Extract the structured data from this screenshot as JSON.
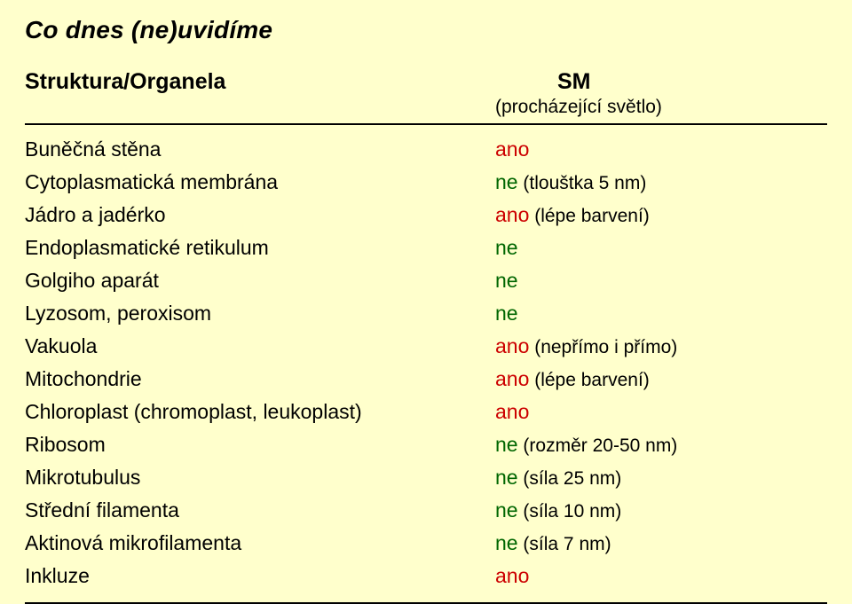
{
  "title": "Co dnes (ne)uvidíme",
  "header": {
    "left": "Struktura/Organela",
    "right": "SM",
    "right_sub": "(procházející světlo)"
  },
  "rows": [
    {
      "label": "Buněčná stěna",
      "flag": "ano",
      "note": "",
      "color": "#cc0000"
    },
    {
      "label": "Cytoplasmatická membrána",
      "flag": "ne",
      "note": " (tlouštka 5 nm)",
      "color": "#006600"
    },
    {
      "label": "Jádro a jadérko",
      "flag": "ano",
      "note": " (lépe barvení)",
      "color": "#cc0000"
    },
    {
      "label": "Endoplasmatické retikulum",
      "flag": "ne",
      "note": "",
      "color": "#006600"
    },
    {
      "label": "Golgiho aparát",
      "flag": "ne",
      "note": "",
      "color": "#006600"
    },
    {
      "label": "Lyzosom, peroxisom",
      "flag": "ne",
      "note": "",
      "color": "#006600"
    },
    {
      "label": "Vakuola",
      "flag": "ano",
      "note": " (nepřímo i přímo)",
      "color": "#cc0000"
    },
    {
      "label": "Mitochondrie",
      "flag": "ano",
      "note": " (lépe barvení)",
      "color": "#cc0000"
    },
    {
      "label": "Chloroplast (chromoplast, leukoplast)",
      "flag": "ano",
      "note": "",
      "color": "#cc0000"
    },
    {
      "label": "Ribosom",
      "flag": "ne",
      "note": " (rozměr 20-50 nm)",
      "color": "#006600"
    },
    {
      "label": "Mikrotubulus",
      "flag": "ne",
      "note": " (síla 25 nm)",
      "color": "#006600"
    },
    {
      "label": "Střední filamenta",
      "flag": "ne",
      "note": " (síla 10 nm)",
      "color": "#006600"
    },
    {
      "label": "Aktinová mikrofilamenta",
      "flag": "ne",
      "note": " (síla 7 nm)",
      "color": "#006600"
    },
    {
      "label": "Inkluze",
      "flag": "ano",
      "note": "",
      "color": "#cc0000"
    }
  ],
  "colors": {
    "bg": "#ffffcc",
    "text": "#000000"
  }
}
